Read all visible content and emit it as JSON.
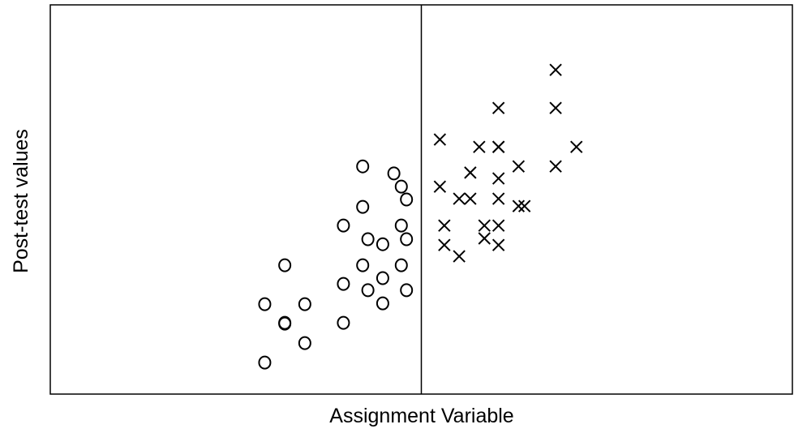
{
  "chart_data": {
    "type": "scatter",
    "xlabel": "Assignment Variable",
    "ylabel": "Post-test values",
    "xlim": [
      0,
      100
    ],
    "ylim": [
      0,
      100
    ],
    "cutoff": 50,
    "series": [
      {
        "marker": "circle",
        "color": "#000000",
        "x": [
          28.9,
          34.3,
          31.6,
          31.6,
          34.3,
          28.9,
          31.6,
          39.5,
          39.5,
          42.1,
          46.3,
          47.3,
          48.0,
          42.1,
          39.5,
          47.3,
          42.8,
          44.8,
          48.0,
          42.1,
          47.3,
          44.8,
          42.8,
          44.8,
          48.0
        ],
        "values": [
          23.1,
          23.1,
          18.3,
          18.1,
          13.1,
          8.1,
          33.1,
          18.3,
          28.3,
          58.5,
          56.7,
          53.3,
          50.0,
          48.1,
          43.3,
          43.3,
          39.8,
          38.5,
          39.8,
          33.1,
          33.1,
          29.8,
          26.7,
          23.3,
          26.7
        ]
      },
      {
        "marker": "cross",
        "color": "#000000",
        "x": [
          68.1,
          60.4,
          68.1,
          52.5,
          57.8,
          60.4,
          60.4,
          70.9,
          56.6,
          63.1,
          68.1,
          60.4,
          52.5,
          55.1,
          56.6,
          60.4,
          63.1,
          63.9,
          53.1,
          58.5,
          60.4,
          53.1,
          55.1,
          58.5,
          60.4
        ],
        "values": [
          83.3,
          73.5,
          73.5,
          65.4,
          63.5,
          63.5,
          63.5,
          63.5,
          56.9,
          58.5,
          58.5,
          55.4,
          53.3,
          50.2,
          50.2,
          50.2,
          48.3,
          48.3,
          43.3,
          43.3,
          43.3,
          38.3,
          35.4,
          40.0,
          38.3
        ]
      }
    ]
  }
}
